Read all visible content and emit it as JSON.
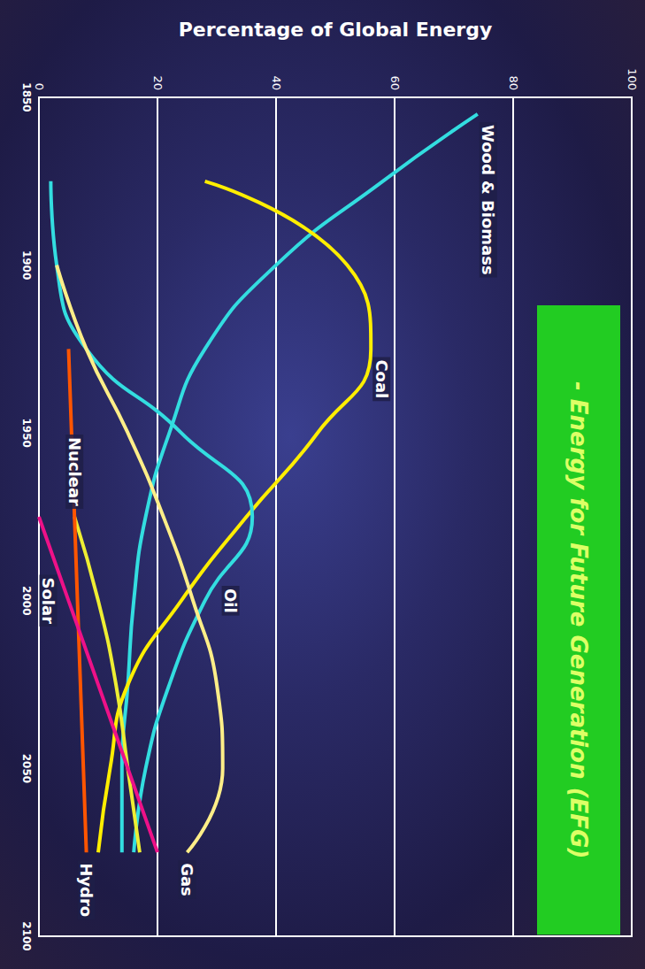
{
  "chart_data": {
    "type": "line",
    "title": "- Energy for Future Generation (EFG)",
    "y_label": "Percentage of Global Energy",
    "x": [
      1855,
      1875,
      1900,
      1925,
      1950,
      1975,
      2000,
      2025,
      2050,
      2075
    ],
    "series": [
      {
        "name": "Wood & Biomass",
        "color": "#33dde0",
        "values": [
          74,
          58,
          40,
          28,
          22,
          18,
          16,
          15,
          14,
          14
        ]
      },
      {
        "name": "Coal",
        "color": "#ffee00",
        "values": [
          null,
          28,
          52,
          56,
          47,
          35,
          24,
          15,
          12,
          10
        ]
      },
      {
        "name": "Oil",
        "color": "#33dde0",
        "values": [
          null,
          2,
          3,
          8,
          24,
          36,
          28,
          22,
          18,
          16
        ]
      },
      {
        "name": "Gas",
        "color": "#ffee88",
        "values": [
          null,
          null,
          3,
          8,
          15,
          21,
          26,
          30,
          31,
          25
        ]
      },
      {
        "name": "Nuclear",
        "color": "#eeee33",
        "values": [
          null,
          null,
          null,
          null,
          null,
          6,
          10,
          13,
          15,
          17
        ]
      },
      {
        "name": "Hydro",
        "color": "#ff5500",
        "values": [
          null,
          null,
          null,
          5,
          5.5,
          6,
          6.5,
          7,
          7.5,
          8
        ]
      },
      {
        "name": "Solar",
        "color": "#ee1188",
        "values": [
          null,
          null,
          null,
          null,
          null,
          0,
          5,
          10,
          15,
          20
        ]
      }
    ],
    "xlim": [
      1850,
      2100
    ],
    "xticks": [
      1850,
      1900,
      1950,
      2000,
      2050,
      2100
    ],
    "ylim": [
      0,
      100
    ],
    "yticks": [
      0,
      20,
      40,
      60,
      80,
      100
    ],
    "grid": true
  }
}
